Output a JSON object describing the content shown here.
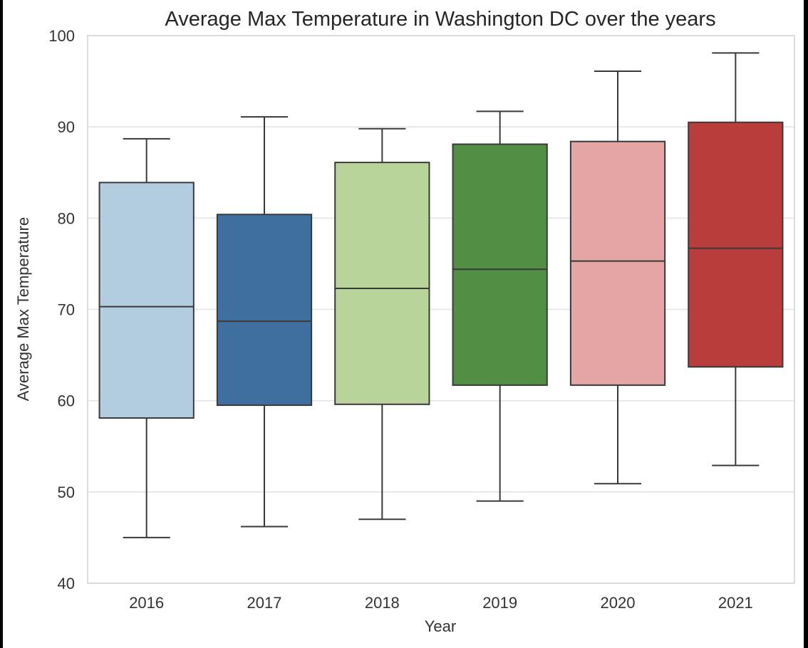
{
  "chart_data": {
    "type": "box",
    "title": "Average Max Temperature in Washington DC over the years",
    "xlabel": "Year",
    "ylabel": "Average Max Temperature",
    "ylim": [
      40,
      100
    ],
    "yticks": [
      40,
      50,
      60,
      70,
      80,
      90,
      100
    ],
    "grid": true,
    "categories": [
      "2016",
      "2017",
      "2018",
      "2019",
      "2020",
      "2021"
    ],
    "boxes": [
      {
        "label": "2016",
        "whisker_low": 45.0,
        "q1": 58.1,
        "median": 70.3,
        "q3": 83.9,
        "whisker_high": 88.7,
        "color": "#b3cde0"
      },
      {
        "label": "2017",
        "whisker_low": 46.2,
        "q1": 59.5,
        "median": 68.7,
        "q3": 80.4,
        "whisker_high": 91.1,
        "color": "#3e6f9e"
      },
      {
        "label": "2018",
        "whisker_low": 47.0,
        "q1": 59.6,
        "median": 72.3,
        "q3": 86.1,
        "whisker_high": 89.8,
        "color": "#b9d49a"
      },
      {
        "label": "2019",
        "whisker_low": 49.0,
        "q1": 61.7,
        "median": 74.4,
        "q3": 88.1,
        "whisker_high": 91.7,
        "color": "#528f45"
      },
      {
        "label": "2020",
        "whisker_low": 50.9,
        "q1": 61.7,
        "median": 75.3,
        "q3": 88.4,
        "whisker_high": 96.1,
        "color": "#e4a5a5"
      },
      {
        "label": "2021",
        "whisker_low": 52.9,
        "q1": 63.7,
        "median": 76.7,
        "q3": 90.5,
        "whisker_high": 98.1,
        "color": "#b93d3a"
      }
    ]
  }
}
